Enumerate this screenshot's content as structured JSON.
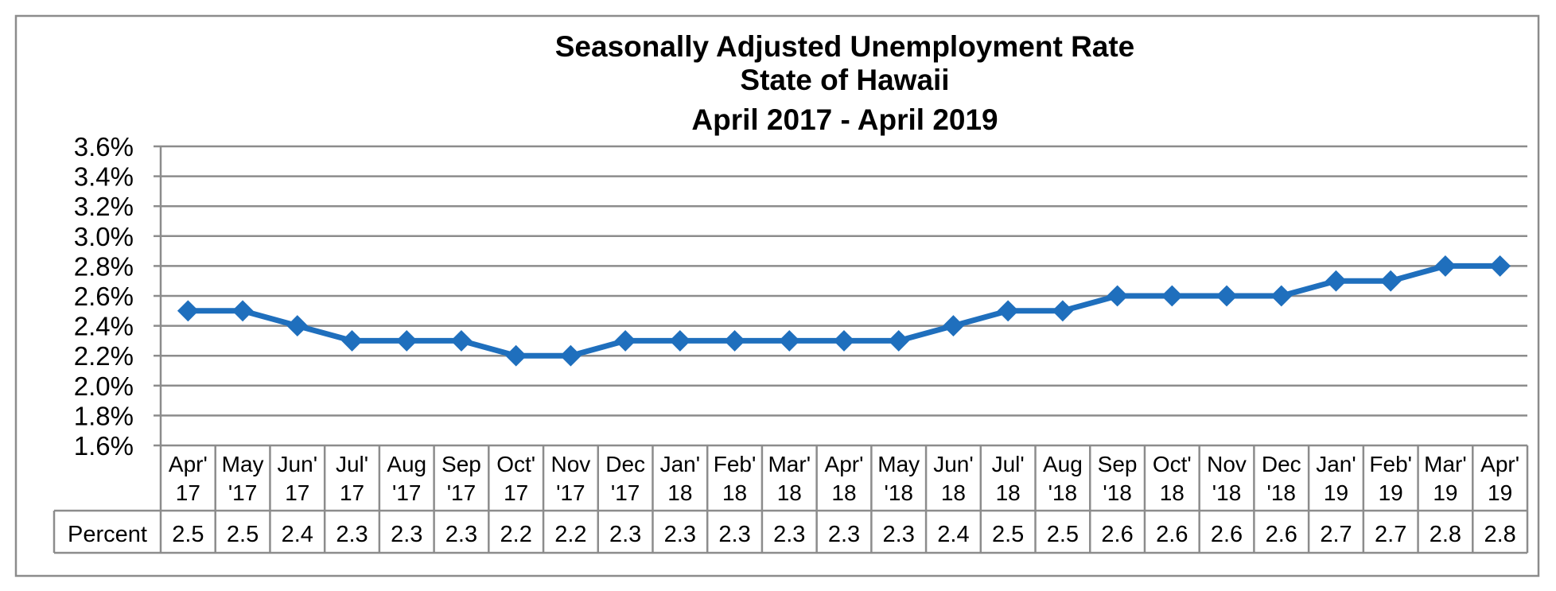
{
  "chart_data": {
    "type": "line",
    "title": [
      "Seasonally Adjusted Unemployment Rate",
      "State of Hawaii",
      "April 2017 - April 2019"
    ],
    "xlabel": "",
    "ylabel": "",
    "ylim": [
      1.6,
      3.6
    ],
    "y_step": 0.2,
    "y_tick_labels": [
      "1.6%",
      "1.8%",
      "2.0%",
      "2.2%",
      "2.4%",
      "2.6%",
      "2.8%",
      "3.0%",
      "3.2%",
      "3.4%",
      "3.6%"
    ],
    "grid": true,
    "legend": "none",
    "categories": [
      [
        "Apr'",
        "17"
      ],
      [
        "May",
        "'17"
      ],
      [
        "Jun'",
        "17"
      ],
      [
        "Jul'",
        "17"
      ],
      [
        "Aug",
        "'17"
      ],
      [
        "Sep",
        "'17"
      ],
      [
        "Oct'",
        "17"
      ],
      [
        "Nov",
        "'17"
      ],
      [
        "Dec",
        "'17"
      ],
      [
        "Jan'",
        "18"
      ],
      [
        "Feb'",
        "18"
      ],
      [
        "Mar'",
        "18"
      ],
      [
        "Apr'",
        "18"
      ],
      [
        "May",
        "'18"
      ],
      [
        "Jun'",
        "18"
      ],
      [
        "Jul'",
        "18"
      ],
      [
        "Aug",
        "'18"
      ],
      [
        "Sep",
        "'18"
      ],
      [
        "Oct'",
        "18"
      ],
      [
        "Nov",
        "'18"
      ],
      [
        "Dec",
        "'18"
      ],
      [
        "Jan'",
        "19"
      ],
      [
        "Feb'",
        "19"
      ],
      [
        "Mar'",
        "19"
      ],
      [
        "Apr'",
        "19"
      ]
    ],
    "series": [
      {
        "name": "Percent",
        "values": [
          2.5,
          2.5,
          2.4,
          2.3,
          2.3,
          2.3,
          2.2,
          2.2,
          2.3,
          2.3,
          2.3,
          2.3,
          2.3,
          2.3,
          2.4,
          2.5,
          2.5,
          2.6,
          2.6,
          2.6,
          2.6,
          2.7,
          2.7,
          2.8,
          2.8
        ],
        "value_labels": [
          "2.5",
          "2.5",
          "2.4",
          "2.3",
          "2.3",
          "2.3",
          "2.2",
          "2.2",
          "2.3",
          "2.3",
          "2.3",
          "2.3",
          "2.3",
          "2.3",
          "2.4",
          "2.5",
          "2.5",
          "2.6",
          "2.6",
          "2.6",
          "2.6",
          "2.7",
          "2.7",
          "2.8",
          "2.8"
        ]
      }
    ],
    "table_row_label": "Percent"
  },
  "colors": {
    "line": "#1f6fbd",
    "grid": "#8c8c8c",
    "axis": "#8c8c8c",
    "frame": "#8c8c8c",
    "text": "#000000",
    "background": "#ffffff"
  }
}
